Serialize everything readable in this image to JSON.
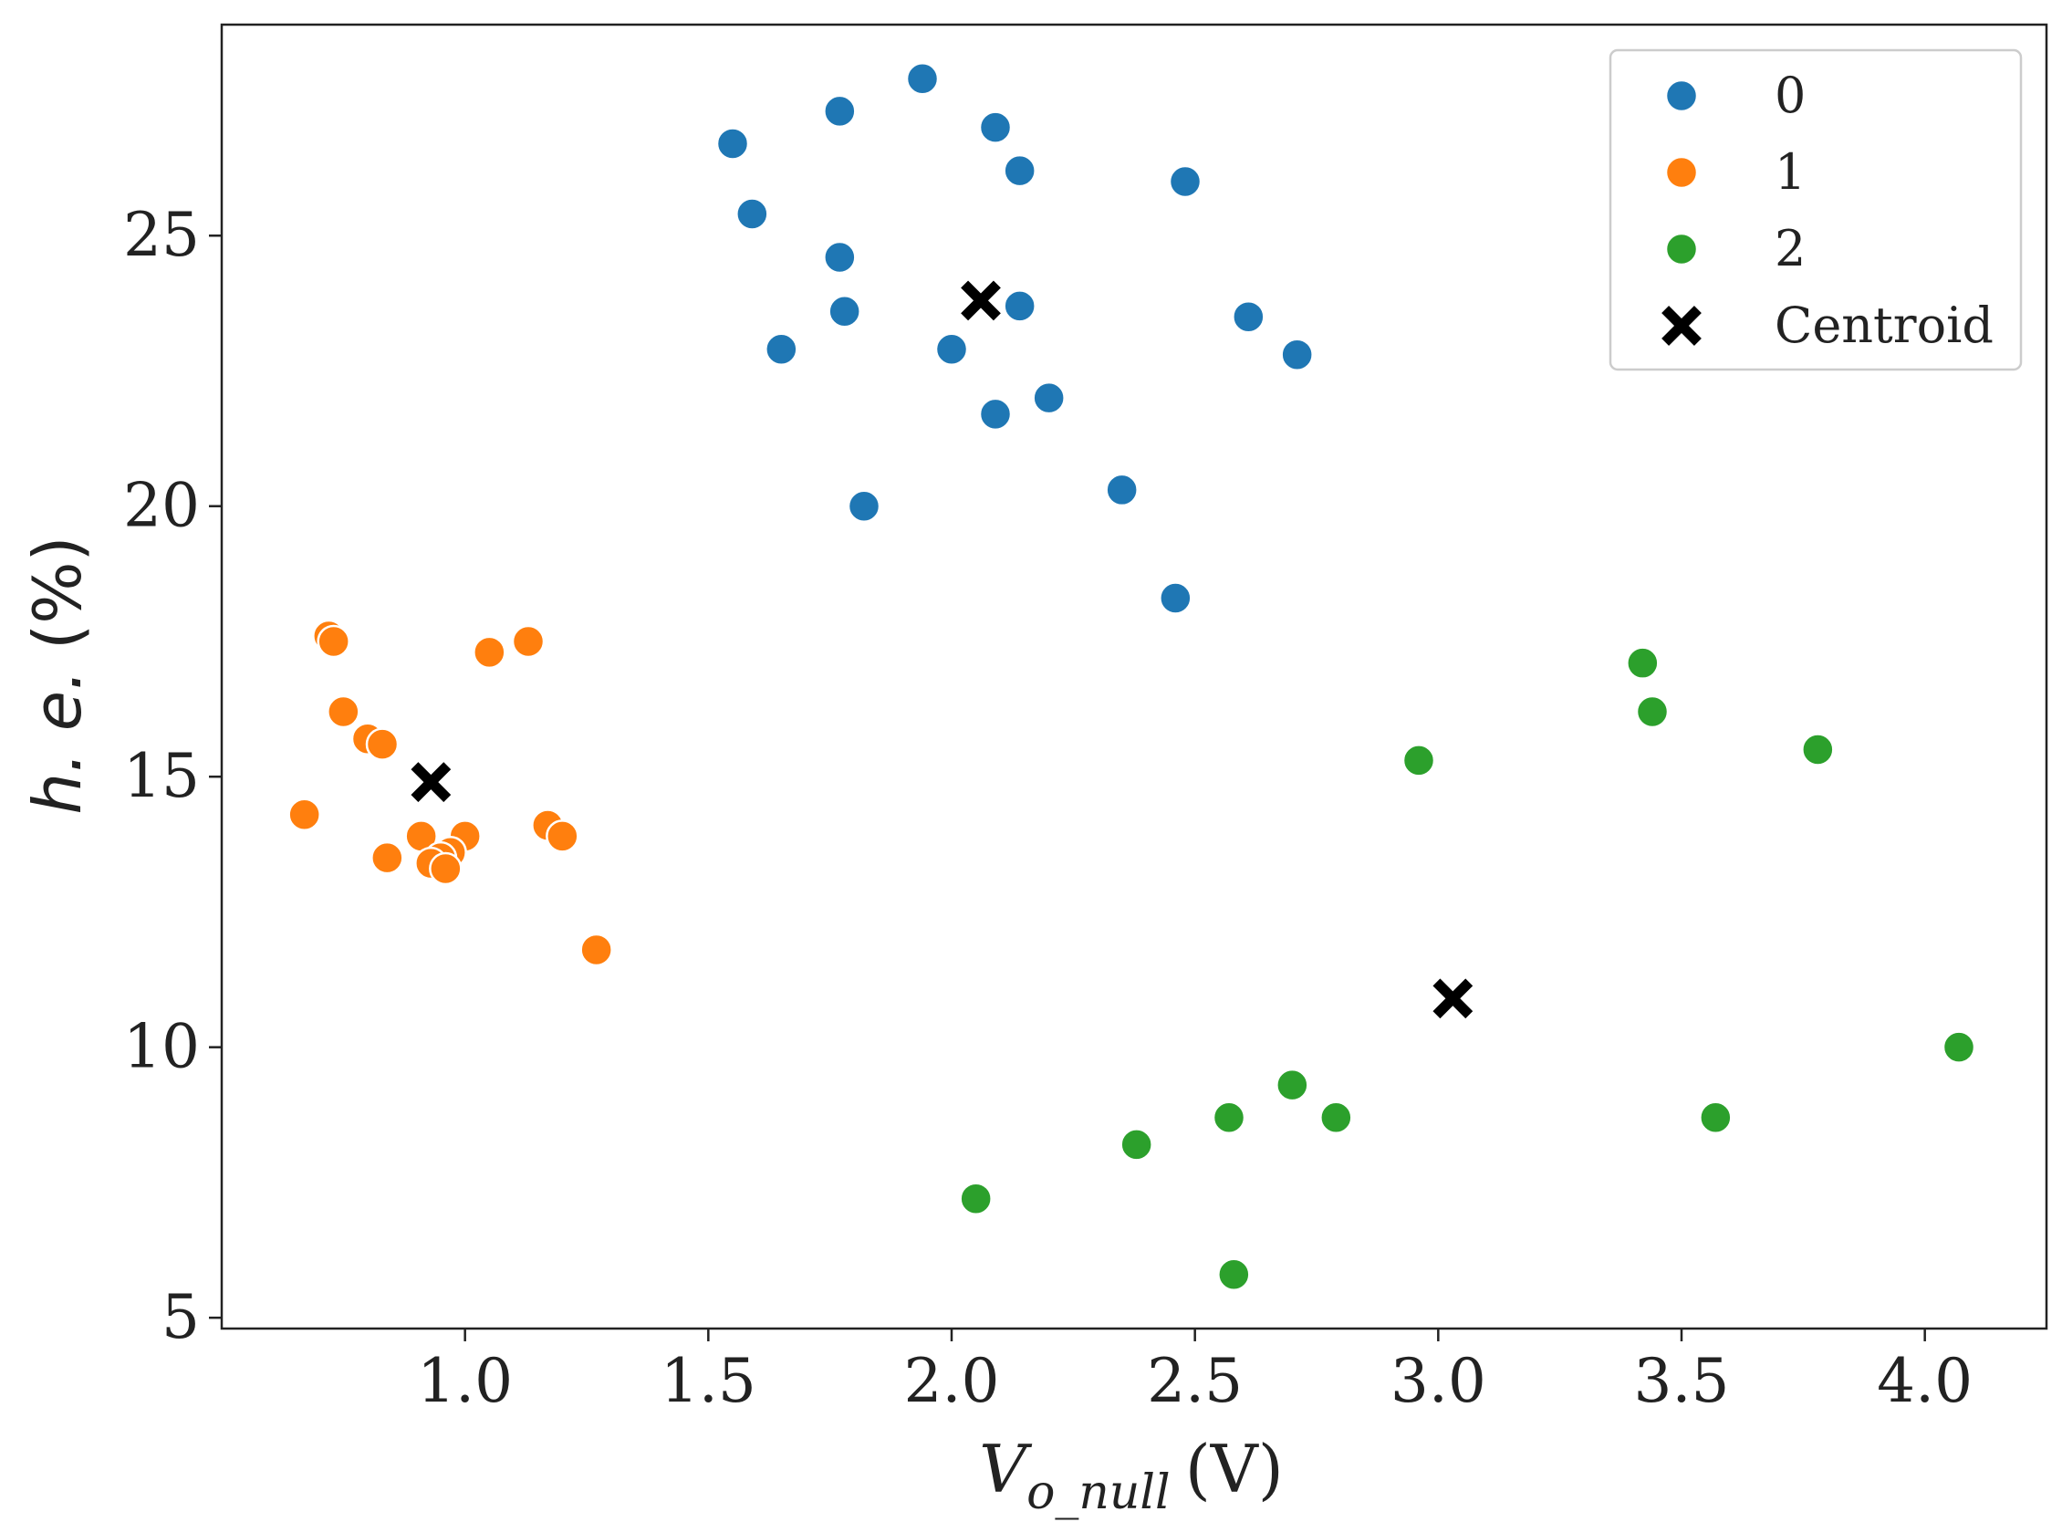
{
  "chart_data": {
    "type": "scatter",
    "title": "",
    "xlabel": {
      "main": "V",
      "sub": "o_null",
      "unit": "(V)"
    },
    "ylabel": {
      "main": "h. e.",
      "unit": "(%)"
    },
    "xlim": [
      0.5,
      4.25
    ],
    "ylim": [
      4.8,
      28.9
    ],
    "xticks": [
      1.0,
      1.5,
      2.0,
      2.5,
      3.0,
      3.5,
      4.0
    ],
    "xtick_labels": [
      "1.0",
      "1.5",
      "2.0",
      "2.5",
      "3.0",
      "3.5",
      "4.0"
    ],
    "yticks": [
      5,
      10,
      15,
      20,
      25
    ],
    "ytick_labels": [
      "5",
      "10",
      "15",
      "20",
      "25"
    ],
    "grid": false,
    "legend_position": "top-right",
    "series": [
      {
        "name": "0",
        "color": "#1f77b4",
        "marker": "circle",
        "x": [
          1.94,
          1.77,
          2.09,
          1.55,
          2.14,
          2.48,
          1.59,
          1.77,
          1.78,
          2.14,
          2.61,
          1.65,
          2.0,
          2.71,
          2.2,
          2.09,
          1.82,
          2.35,
          2.46
        ],
        "y": [
          27.9,
          27.3,
          27.0,
          26.7,
          26.2,
          26.0,
          25.4,
          24.6,
          23.6,
          23.7,
          23.5,
          22.9,
          22.9,
          22.8,
          22.0,
          21.7,
          20.0,
          20.3,
          18.3
        ]
      },
      {
        "name": "1",
        "color": "#ff7f0e",
        "marker": "circle",
        "x": [
          0.72,
          0.73,
          1.13,
          1.05,
          0.75,
          0.8,
          0.83,
          0.67,
          1.17,
          1.2,
          0.91,
          1.0,
          0.97,
          0.95,
          0.84,
          0.93,
          0.96,
          1.27
        ],
        "y": [
          17.6,
          17.5,
          17.5,
          17.3,
          16.2,
          15.7,
          15.6,
          14.3,
          14.1,
          13.9,
          13.9,
          13.9,
          13.6,
          13.5,
          13.5,
          13.4,
          13.3,
          11.8
        ]
      },
      {
        "name": "2",
        "color": "#2ca02c",
        "marker": "circle",
        "x": [
          3.42,
          3.44,
          3.78,
          2.96,
          4.07,
          2.7,
          2.57,
          2.79,
          3.57,
          2.38,
          2.05,
          2.58
        ],
        "y": [
          17.1,
          16.2,
          15.5,
          15.3,
          10.0,
          9.3,
          8.7,
          8.7,
          8.7,
          8.2,
          7.2,
          5.8
        ]
      },
      {
        "name": "Centroid",
        "color": "#000000",
        "marker": "x",
        "x": [
          2.06,
          0.93,
          3.03
        ],
        "y": [
          23.8,
          14.9,
          10.9
        ]
      }
    ]
  }
}
